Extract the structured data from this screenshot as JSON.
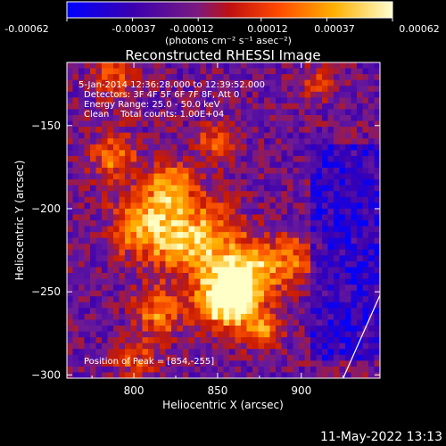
{
  "colorbar": {
    "tick_labels": [
      "-0.00062",
      "-0.00037",
      "-0.00012",
      "0.00012",
      "0.00037",
      "0.00062"
    ],
    "units_label": "(photons cm⁻² s⁻¹ asec⁻²)"
  },
  "chart_data": {
    "type": "heatmap",
    "title": "Reconstructed RHESSI Image",
    "xlabel": "Heliocentric X (arcsec)",
    "ylabel": "Heliocentric Y (arcsec)",
    "xlim": [
      760,
      947
    ],
    "ylim": [
      -302,
      -112
    ],
    "x_ticks": [
      800,
      850,
      900
    ],
    "y_ticks": [
      -150,
      -200,
      -250,
      -300
    ],
    "x_tick_labels": [
      "800",
      "850",
      "900"
    ],
    "y_tick_labels": [
      "−150",
      "−200",
      "−250",
      "−300"
    ],
    "color_range": [
      -0.00062,
      0.00062
    ],
    "colormap": [
      "#0000ff",
      "#3a00b0",
      "#6a1a9a",
      "#c81a00",
      "#ff5a00",
      "#ffb000",
      "#ffffc8"
    ],
    "peak": [
      854,
      -255
    ],
    "limb_line": [
      [
        925,
        -302
      ],
      [
        947,
        -252
      ]
    ],
    "annotations": [
      "5-Jan-2014 12:36:28.000 to 12:39:52.000",
      "Detectors: 3F 4F 5F 6F 7F 8F, Att 0",
      "Energy Range: 25.0 - 50.0 keV",
      "Clean    Total counts: 1.00E+04"
    ],
    "peak_label": "Position of Peak = [854,-255]"
  },
  "timestamp": "11-May-2022 13:13"
}
